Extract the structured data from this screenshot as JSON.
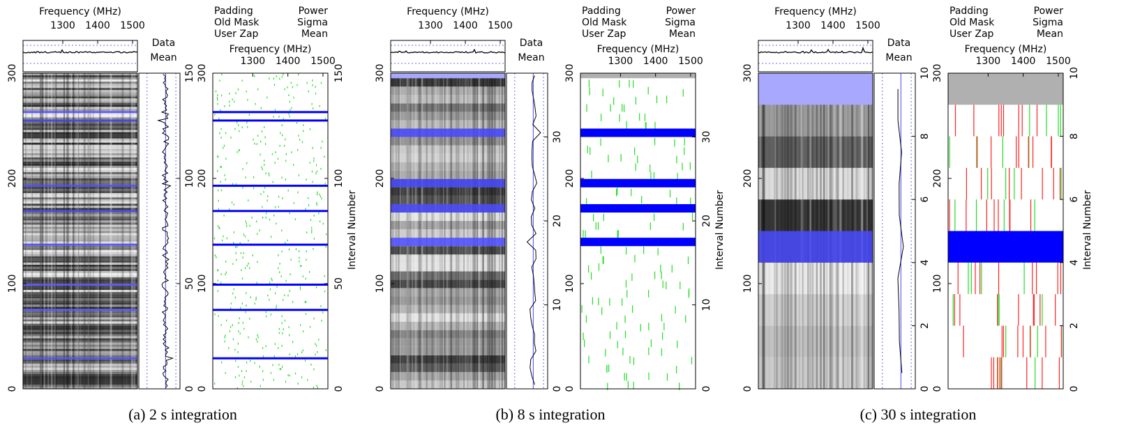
{
  "chart_data": [
    {
      "type": "rfifind",
      "caption": "(a) 2 s integration",
      "freq_label": "Frequency (MHz)",
      "xlim": [
        1186,
        1514
      ],
      "xticks": [
        1300,
        1400,
        1500
      ],
      "ylim": [
        0,
        300
      ],
      "yticks": [
        0,
        100,
        200,
        300
      ],
      "y2lim": [
        0,
        150
      ],
      "y2ticks": [
        0,
        50,
        100,
        150
      ],
      "y2label": "Interval Number",
      "stat_legend": [
        {
          "name": "Data",
          "color": "#3333ff"
        },
        {
          "name": "Mean",
          "color": "#3333ff"
        }
      ],
      "mask_legend": [
        {
          "name": "Padding",
          "color": "#c8c8c8"
        },
        {
          "name": "Old Mask",
          "color": "#555555"
        },
        {
          "name": "User Zap",
          "color": "#222222"
        },
        {
          "name": "Power",
          "color": "#ff2020"
        },
        {
          "name": "Sigma",
          "color": "#22dd22"
        },
        {
          "name": "Mean",
          "color": "#0000ff"
        }
      ],
      "masked_intervals": [
        14,
        37,
        49,
        68,
        84,
        96,
        127,
        131
      ],
      "padding_intervals": []
    },
    {
      "type": "rfifind",
      "caption": "(b) 8 s integration",
      "freq_label": "Frequency (MHz)",
      "xlim": [
        1186,
        1514
      ],
      "xticks": [
        1300,
        1400,
        1500
      ],
      "ylim": [
        0,
        300
      ],
      "yticks": [
        0,
        100,
        200,
        300
      ],
      "y2lim": [
        0,
        37.6
      ],
      "y2ticks": [
        0,
        10,
        20,
        30
      ],
      "y2label": "Interval Number",
      "stat_legend": [
        {
          "name": "Data",
          "color": "#3333ff"
        },
        {
          "name": "Mean",
          "color": "#3333ff"
        }
      ],
      "mask_legend": [
        {
          "name": "Padding",
          "color": "#c8c8c8"
        },
        {
          "name": "Old Mask",
          "color": "#555555"
        },
        {
          "name": "User Zap",
          "color": "#222222"
        },
        {
          "name": "Power",
          "color": "#ff2020"
        },
        {
          "name": "Sigma",
          "color": "#22dd22"
        },
        {
          "name": "Mean",
          "color": "#0000ff"
        }
      ],
      "masked_intervals": [
        17,
        21,
        24,
        30
      ],
      "padding_intervals": [
        37
      ]
    },
    {
      "type": "rfifind",
      "caption": "(c) 30 s integration",
      "freq_label": "Frequency (MHz)",
      "xlim": [
        1186,
        1514
      ],
      "xticks": [
        1300,
        1400,
        1500
      ],
      "ylim": [
        0,
        300
      ],
      "yticks": [
        0,
        100,
        200,
        300
      ],
      "y2lim": [
        0,
        10
      ],
      "y2ticks": [
        0,
        2,
        4,
        6,
        8,
        10
      ],
      "y2label": "Interval Number",
      "stat_legend": [
        {
          "name": "Data",
          "color": "#3333ff"
        },
        {
          "name": "Mean",
          "color": "#3333ff"
        }
      ],
      "mask_legend": [
        {
          "name": "Padding",
          "color": "#c8c8c8"
        },
        {
          "name": "Old Mask",
          "color": "#555555"
        },
        {
          "name": "User Zap",
          "color": "#222222"
        },
        {
          "name": "Power",
          "color": "#ff2020"
        },
        {
          "name": "Sigma",
          "color": "#22dd22"
        },
        {
          "name": "Mean",
          "color": "#0000ff"
        }
      ],
      "masked_intervals": [
        4
      ],
      "padding_intervals": [
        9
      ]
    }
  ]
}
